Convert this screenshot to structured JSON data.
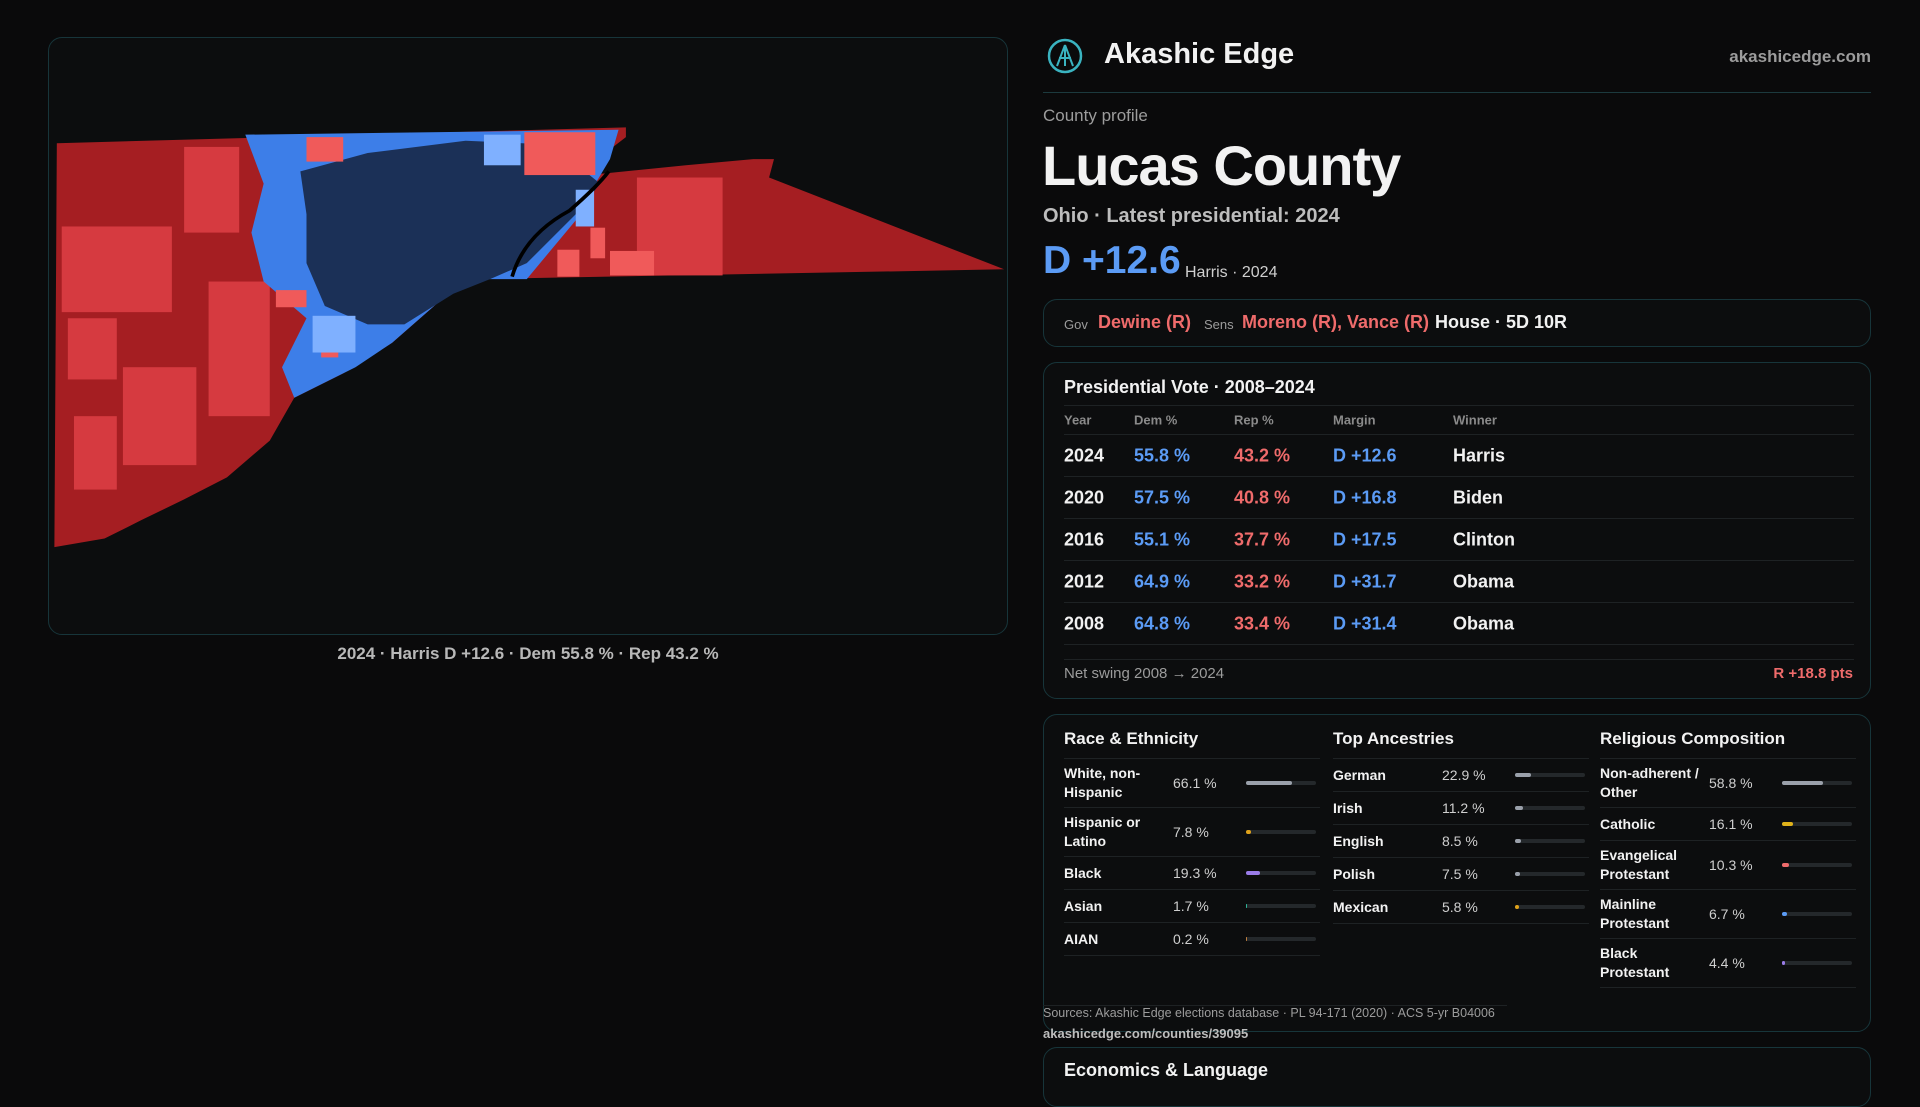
{
  "header": {
    "brand": "Akashic Edge",
    "url": "akashicedge.com"
  },
  "map": {
    "caption": "2024 · Harris D +12.6 · Dem 55.8 % · Rep 43.2 %"
  },
  "profile": {
    "kicker": "County profile",
    "name": "Lucas County",
    "subtitle": "Ohio · Latest presidential: 2024",
    "margin": "D +12.6",
    "margin_note": "Harris · 2024"
  },
  "officials": {
    "gov_label": "Gov",
    "gov": "Dewine (R)",
    "sens_label": "Sens",
    "sens": "Moreno (R), Vance (R)",
    "house": "House · 5D 10R"
  },
  "presidential": {
    "title": "Presidential Vote · 2008–2024",
    "columns": [
      "Year",
      "Dem %",
      "Rep %",
      "Margin",
      "Winner"
    ],
    "rows": [
      [
        "2024",
        "55.8 %",
        "43.2 %",
        "D +12.6",
        "Harris"
      ],
      [
        "2020",
        "57.5 %",
        "40.8 %",
        "D +16.8",
        "Biden"
      ],
      [
        "2016",
        "55.1 %",
        "37.7 %",
        "D +17.5",
        "Clinton"
      ],
      [
        "2012",
        "64.9 %",
        "33.2 %",
        "D +31.7",
        "Obama"
      ],
      [
        "2008",
        "64.8 %",
        "33.4 %",
        "D +31.4",
        "Obama"
      ]
    ],
    "swing_label": "Net swing 2008 → 2024",
    "swing": "R +18.8 pts"
  },
  "race": {
    "title": "Race & Ethnicity",
    "items": [
      {
        "label": "White, non-Hispanic",
        "value": 66.1,
        "value_label": "66.1 %",
        "color": "#9aa0aa"
      },
      {
        "label": "Hispanic or Latino",
        "value": 7.8,
        "value_label": "7.8 %",
        "color": "#e0a21a"
      },
      {
        "label": "Black",
        "value": 19.3,
        "value_label": "19.3 %",
        "color": "#9a7ce8"
      },
      {
        "label": "Asian",
        "value": 1.7,
        "value_label": "1.7 %",
        "color": "#2fb59a"
      },
      {
        "label": "AIAN",
        "value": 0.2,
        "value_label": "0.2 %",
        "color": "#c08040"
      }
    ]
  },
  "ancestries": {
    "title": "Top Ancestries",
    "items": [
      {
        "label": "German",
        "value": 22.9,
        "value_label": "22.9 %",
        "color": "#9aa0aa"
      },
      {
        "label": "Irish",
        "value": 11.2,
        "value_label": "11.2 %",
        "color": "#9aa0aa"
      },
      {
        "label": "English",
        "value": 8.5,
        "value_label": "8.5 %",
        "color": "#9aa0aa"
      },
      {
        "label": "Polish",
        "value": 7.5,
        "value_label": "7.5 %",
        "color": "#9aa0aa"
      },
      {
        "label": "Mexican",
        "value": 5.8,
        "value_label": "5.8 %",
        "color": "#e0a21a"
      }
    ]
  },
  "religion": {
    "title": "Religious Composition",
    "items": [
      {
        "label": "Non-adherent / Other",
        "value": 58.8,
        "value_label": "58.8 %",
        "color": "#9aa0aa"
      },
      {
        "label": "Catholic",
        "value": 16.1,
        "value_label": "16.1 %",
        "color": "#e0b21a"
      },
      {
        "label": "Evangelical Protestant",
        "value": 10.3,
        "value_label": "10.3 %",
        "color": "#ef6b6b"
      },
      {
        "label": "Mainline Protestant",
        "value": 6.7,
        "value_label": "6.7 %",
        "color": "#5b9bf5"
      },
      {
        "label": "Black Protestant",
        "value": 4.4,
        "value_label": "4.4 %",
        "color": "#9a7ce8"
      }
    ]
  },
  "sources": "Sources: Akashic Edge elections database · PL 94-171 (2020) · ACS 5-yr B04006",
  "link": "akashicedge.com/counties/39095",
  "economics": {
    "title": "Economics & Language"
  }
}
